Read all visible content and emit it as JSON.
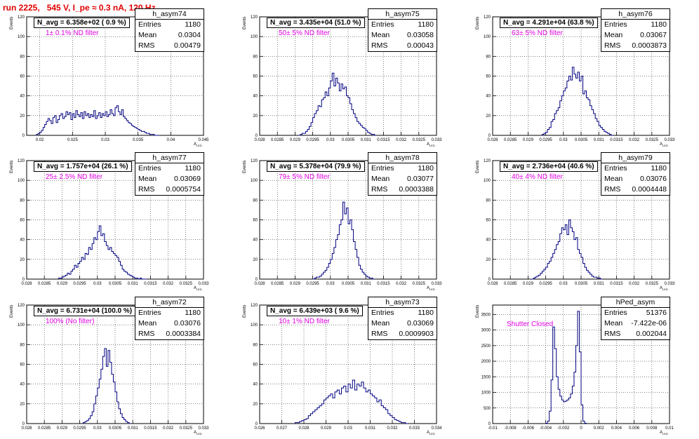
{
  "title": "run 2225,   545 V, I_pe ≈ 0.3 nA, 120 Hz",
  "colors": {
    "title": "#e00000",
    "filter_text": "#e000e0",
    "hist_line": "#000080"
  },
  "ylabel": "Events",
  "xlabel": "A",
  "xlabel_sub": "LED",
  "chart_data": [
    {
      "type": "bar",
      "name": "h_asym74",
      "n_avg": "N_avg = 6.358e+02 ( 0.9 %)",
      "filter": "1± 0.1% ND filter",
      "stats": {
        "entries": "1180",
        "mean": "0.0304",
        "rms": "0.00479"
      },
      "xlim": [
        0.018,
        0.045
      ],
      "ylim": [
        0,
        120
      ],
      "xticks": [
        "0.02",
        "0.025",
        "0.03",
        "0.035",
        "0.04",
        "0.045"
      ],
      "xtick_vals": [
        0.02,
        0.025,
        0.03,
        0.035,
        0.04,
        0.045
      ],
      "yticks": [
        "0",
        "20",
        "40",
        "60",
        "80",
        "100",
        "120"
      ],
      "x_start": 0.0195,
      "bin_width": 0.00025,
      "values": [
        1,
        2,
        3,
        5,
        8,
        11,
        14,
        17,
        15,
        12,
        18,
        20,
        13,
        16,
        20,
        22,
        17,
        19,
        24,
        21,
        23,
        16,
        22,
        18,
        25,
        21,
        19,
        23,
        17,
        24,
        20,
        22,
        18,
        21,
        19,
        25,
        17,
        20,
        23,
        18,
        22,
        20,
        24,
        19,
        21,
        26,
        22,
        20,
        28,
        30,
        24,
        21,
        26,
        19,
        17,
        15,
        13,
        12,
        10,
        9,
        8,
        7,
        6,
        5,
        4,
        4,
        3,
        2,
        2,
        1,
        1,
        1,
        0,
        0,
        0
      ]
    },
    {
      "type": "bar",
      "name": "h_asym75",
      "n_avg": "N_avg = 3.435e+04 (51.0 %)",
      "filter": "50± 5% ND filter",
      "stats": {
        "entries": "1180",
        "mean": "0.03058",
        "rms": "0.00043"
      },
      "xlim": [
        0.028,
        0.033
      ],
      "ylim": [
        0,
        120
      ],
      "xticks": [
        "0.028",
        "0.0285",
        "0.029",
        "0.0295",
        "0.03",
        "0.0305",
        "0.031",
        "0.0315",
        "0.032",
        "0.0325",
        "0.033"
      ],
      "xtick_vals": [
        0.028,
        0.0285,
        0.029,
        0.0295,
        0.03,
        0.0305,
        0.031,
        0.0315,
        0.032,
        0.0325,
        0.033
      ],
      "yticks": [
        "0",
        "20",
        "40",
        "60",
        "80",
        "100",
        "120"
      ],
      "x_start": 0.0291,
      "bin_width": 5e-05,
      "values": [
        0,
        1,
        2,
        2,
        4,
        6,
        9,
        13,
        18,
        22,
        25,
        30,
        29,
        36,
        38,
        44,
        40,
        48,
        55,
        63,
        50,
        58,
        53,
        45,
        52,
        47,
        49,
        40,
        38,
        32,
        26,
        22,
        18,
        14,
        12,
        10,
        8,
        7,
        5,
        3,
        2,
        1,
        1,
        0
      ]
    },
    {
      "type": "bar",
      "name": "h_asym76",
      "n_avg": "N_avg = 4.291e+04 (63.8 %)",
      "filter": "63± 5% ND filter",
      "stats": {
        "entries": "1180",
        "mean": "0.03067",
        "rms": "0.0003873"
      },
      "xlim": [
        0.028,
        0.033
      ],
      "ylim": [
        0,
        120
      ],
      "xticks": [
        "0.028",
        "0.0285",
        "0.029",
        "0.0295",
        "0.03",
        "0.0305",
        "0.031",
        "0.0315",
        "0.032",
        "0.0325",
        "0.033"
      ],
      "xtick_vals": [
        0.028,
        0.0285,
        0.029,
        0.0295,
        0.03,
        0.0305,
        0.031,
        0.0315,
        0.032,
        0.0325,
        0.033
      ],
      "yticks": [
        "0",
        "20",
        "40",
        "60",
        "80",
        "100",
        "120"
      ],
      "x_start": 0.0294,
      "bin_width": 5e-05,
      "values": [
        1,
        2,
        3,
        6,
        8,
        14,
        16,
        22,
        25,
        28,
        35,
        40,
        45,
        48,
        55,
        60,
        56,
        69,
        62,
        58,
        64,
        55,
        60,
        42,
        45,
        38,
        36,
        30,
        26,
        22,
        17,
        14,
        10,
        8,
        6,
        4,
        3,
        2,
        1,
        0
      ]
    },
    {
      "type": "bar",
      "name": "h_asym77",
      "n_avg": "N_avg = 1.757e+04 (26.1 %)",
      "filter": "25± 2.5% ND filter",
      "stats": {
        "entries": "1180",
        "mean": "0.03069",
        "rms": "0.0005754"
      },
      "xlim": [
        0.028,
        0.033
      ],
      "ylim": [
        0,
        120
      ],
      "xticks": [
        "0.028",
        "0.0285",
        "0.029",
        "0.0295",
        "0.03",
        "0.0305",
        "0.031",
        "0.0315",
        "0.032",
        "0.0325",
        "0.033"
      ],
      "xtick_vals": [
        0.028,
        0.0285,
        0.029,
        0.0295,
        0.03,
        0.0305,
        0.031,
        0.0315,
        0.032,
        0.0325,
        0.033
      ],
      "yticks": [
        "0",
        "20",
        "40",
        "60",
        "80",
        "100",
        "120"
      ],
      "x_start": 0.0289,
      "bin_width": 5e-05,
      "values": [
        1,
        1,
        2,
        3,
        4,
        6,
        5,
        8,
        10,
        14,
        12,
        16,
        18,
        22,
        20,
        26,
        25,
        32,
        30,
        36,
        42,
        40,
        48,
        54,
        44,
        46,
        38,
        34,
        30,
        32,
        28,
        26,
        24,
        22,
        18,
        14,
        10,
        8,
        7,
        5,
        4,
        3,
        2,
        1,
        1,
        0,
        1,
        0,
        0,
        0
      ]
    },
    {
      "type": "bar",
      "name": "h_asym78",
      "n_avg": "N_avg = 5.378e+04 (79.9 %)",
      "filter": "79± 5% ND filter",
      "stats": {
        "entries": "1180",
        "mean": "0.03077",
        "rms": "0.0003388"
      },
      "xlim": [
        0.028,
        0.033
      ],
      "ylim": [
        0,
        120
      ],
      "xticks": [
        "0.028",
        "0.0285",
        "0.029",
        "0.0295",
        "0.03",
        "0.0305",
        "0.031",
        "0.0315",
        "0.032",
        "0.0325",
        "0.033"
      ],
      "xtick_vals": [
        0.028,
        0.0285,
        0.029,
        0.0295,
        0.03,
        0.0305,
        0.031,
        0.0315,
        0.032,
        0.0325,
        0.033
      ],
      "yticks": [
        "0",
        "20",
        "40",
        "60",
        "80",
        "100",
        "120"
      ],
      "x_start": 0.0295,
      "bin_width": 5e-05,
      "values": [
        0,
        1,
        2,
        2,
        3,
        5,
        7,
        9,
        12,
        16,
        20,
        26,
        32,
        40,
        45,
        55,
        60,
        78,
        66,
        72,
        56,
        60,
        50,
        38,
        30,
        22,
        14,
        10,
        7,
        5,
        3,
        2,
        1,
        1,
        0
      ]
    },
    {
      "type": "bar",
      "name": "h_asym79",
      "n_avg": "N_avg = 2.736e+04 (40.6 %)",
      "filter": "40± 4% ND filter",
      "stats": {
        "entries": "1180",
        "mean": "0.03076",
        "rms": "0.0004448"
      },
      "xlim": [
        0.028,
        0.033
      ],
      "ylim": [
        0,
        120
      ],
      "xticks": [
        "0.028",
        "0.0285",
        "0.029",
        "0.0295",
        "0.03",
        "0.0305",
        "0.031",
        "0.0315",
        "0.032",
        "0.0325",
        "0.033"
      ],
      "xtick_vals": [
        0.028,
        0.0285,
        0.029,
        0.0295,
        0.03,
        0.0305,
        0.031,
        0.0315,
        0.032,
        0.0325,
        0.033
      ],
      "yticks": [
        "0",
        "20",
        "40",
        "60",
        "80",
        "100",
        "120"
      ],
      "x_start": 0.0291,
      "bin_width": 5e-05,
      "values": [
        0,
        1,
        2,
        3,
        4,
        6,
        8,
        10,
        12,
        16,
        18,
        22,
        26,
        30,
        35,
        38,
        46,
        52,
        50,
        55,
        45,
        60,
        52,
        48,
        40,
        42,
        30,
        26,
        22,
        16,
        12,
        9,
        7,
        5,
        3,
        2,
        2,
        1,
        1,
        0
      ]
    },
    {
      "type": "bar",
      "name": "h_asym72",
      "n_avg": "N_avg = 6.731e+04 (100.0 %)",
      "filter": "100% (No filter)",
      "stats": {
        "entries": "1180",
        "mean": "0.03076",
        "rms": "0.0003384"
      },
      "xlim": [
        0.028,
        0.033
      ],
      "ylim": [
        0,
        120
      ],
      "xticks": [
        "0.028",
        "0.0285",
        "0.029",
        "0.0295",
        "0.03",
        "0.0305",
        "0.031",
        "0.0315",
        "0.032",
        "0.0325",
        "0.033"
      ],
      "xtick_vals": [
        0.028,
        0.0285,
        0.029,
        0.0295,
        0.03,
        0.0305,
        0.031,
        0.0315,
        0.032,
        0.0325,
        0.033
      ],
      "yticks": [
        "0",
        "20",
        "40",
        "60",
        "80",
        "100",
        "120"
      ],
      "x_start": 0.0296,
      "bin_width": 5e-05,
      "values": [
        1,
        2,
        3,
        5,
        8,
        12,
        20,
        28,
        36,
        45,
        55,
        68,
        76,
        58,
        74,
        62,
        50,
        42,
        32,
        22,
        15,
        10,
        6,
        4,
        2,
        1,
        0
      ]
    },
    {
      "type": "bar",
      "name": "h_asym73",
      "n_avg": "N_avg = 6.439e+03 ( 9.6 %)",
      "filter": "10± 1% ND filter",
      "stats": {
        "entries": "1180",
        "mean": "0.03069",
        "rms": "0.0009903"
      },
      "xlim": [
        0.026,
        0.034
      ],
      "ylim": [
        0,
        120
      ],
      "xticks": [
        "0.026",
        "0.027",
        "0.028",
        "0.029",
        "0.03",
        "0.031",
        "0.032",
        "0.033",
        "0.034"
      ],
      "xtick_vals": [
        0.026,
        0.027,
        0.028,
        0.029,
        0.03,
        0.031,
        0.032,
        0.033,
        0.034
      ],
      "yticks": [
        "0",
        "20",
        "40",
        "60",
        "80",
        "100",
        "120"
      ],
      "x_start": 0.0276,
      "bin_width": 0.0001,
      "values": [
        1,
        1,
        2,
        3,
        4,
        5,
        8,
        10,
        12,
        14,
        16,
        18,
        20,
        24,
        26,
        28,
        30,
        26,
        32,
        34,
        30,
        36,
        38,
        32,
        40,
        36,
        44,
        34,
        40,
        38,
        42,
        36,
        32,
        34,
        30,
        28,
        26,
        22,
        24,
        18,
        16,
        14,
        10,
        8,
        6,
        4,
        3,
        2,
        1,
        1,
        0
      ]
    },
    {
      "type": "bar",
      "name": "hPed_asym",
      "n_avg": "",
      "filter": "Shutter Closed",
      "stats": {
        "entries": "51376",
        "mean": "-7.422e-06",
        "rms": "0.002044"
      },
      "xlim": [
        -0.01,
        0.01
      ],
      "ylim": [
        0,
        3800
      ],
      "xticks": [
        "-0.01",
        "-0.008",
        "-0.006",
        "-0.004",
        "-0.002",
        "0",
        "0.002",
        "0.004",
        "0.006",
        "0.008",
        "0.01"
      ],
      "xtick_vals": [
        -0.01,
        -0.008,
        -0.006,
        -0.004,
        -0.002,
        0,
        0.002,
        0.004,
        0.006,
        0.008,
        0.01
      ],
      "yticks": [
        "0",
        "500",
        "1000",
        "1500",
        "2000",
        "2500",
        "3000",
        "3500"
      ],
      "x_start": -0.004,
      "bin_width": 0.0002,
      "values": [
        10,
        80,
        400,
        1400,
        3100,
        2400,
        1500,
        1100,
        880,
        760,
        700,
        720,
        760,
        820,
        950,
        1200,
        1650,
        2500,
        3600,
        2300,
        600,
        80,
        10
      ]
    }
  ]
}
